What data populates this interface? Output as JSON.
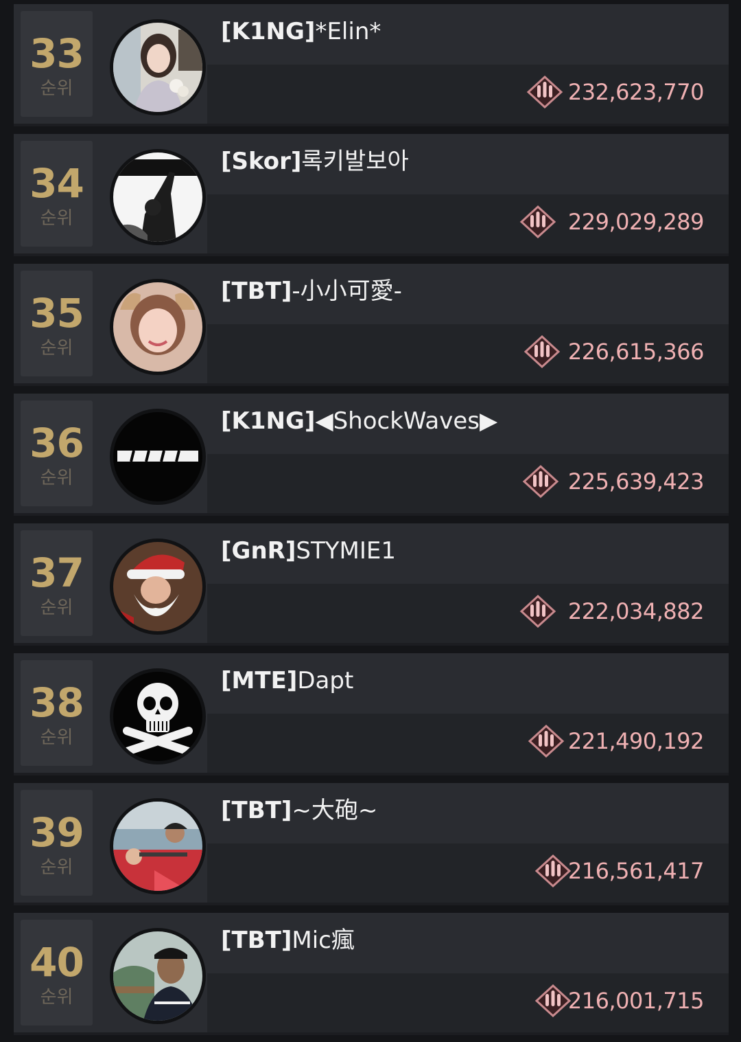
{
  "rank_suffix": "순위",
  "score_icon": "bullets-badge-icon",
  "colors": {
    "rank_number": "#c2a76c",
    "score": "#f0b1b3",
    "row_bg": "#2a2c31"
  },
  "players": [
    {
      "rank": "33",
      "tag": "[K1NG]",
      "name": "*Elin*",
      "score": "232,623,770",
      "avatar": "woman-portrait"
    },
    {
      "rank": "34",
      "tag": "[Skor]",
      "name": "록키발보아",
      "score": "229,029,289",
      "avatar": "balboa-poster"
    },
    {
      "rank": "35",
      "tag": "[TBT]",
      "name": "-小小可愛-",
      "score": "226,615,366",
      "avatar": "woman-selfie"
    },
    {
      "rank": "36",
      "tag": "[K1NG]",
      "name": "◀ShockWaves▶",
      "score": "225,639,423",
      "avatar": "savage-logo"
    },
    {
      "rank": "37",
      "tag": "[GnR]",
      "name": "STYMIE1",
      "score": "222,034,882",
      "avatar": "santa-portrait"
    },
    {
      "rank": "38",
      "tag": "[MTE]",
      "name": "Dapt",
      "score": "221,490,192",
      "avatar": "skull-crossbones"
    },
    {
      "rank": "39",
      "tag": "[TBT]",
      "name": "~大砲~",
      "score": "216,561,417",
      "avatar": "crowd-photo"
    },
    {
      "rank": "40",
      "tag": "[TBT]",
      "name": "Mic瘋",
      "score": "216,001,715",
      "avatar": "man-portrait"
    }
  ]
}
